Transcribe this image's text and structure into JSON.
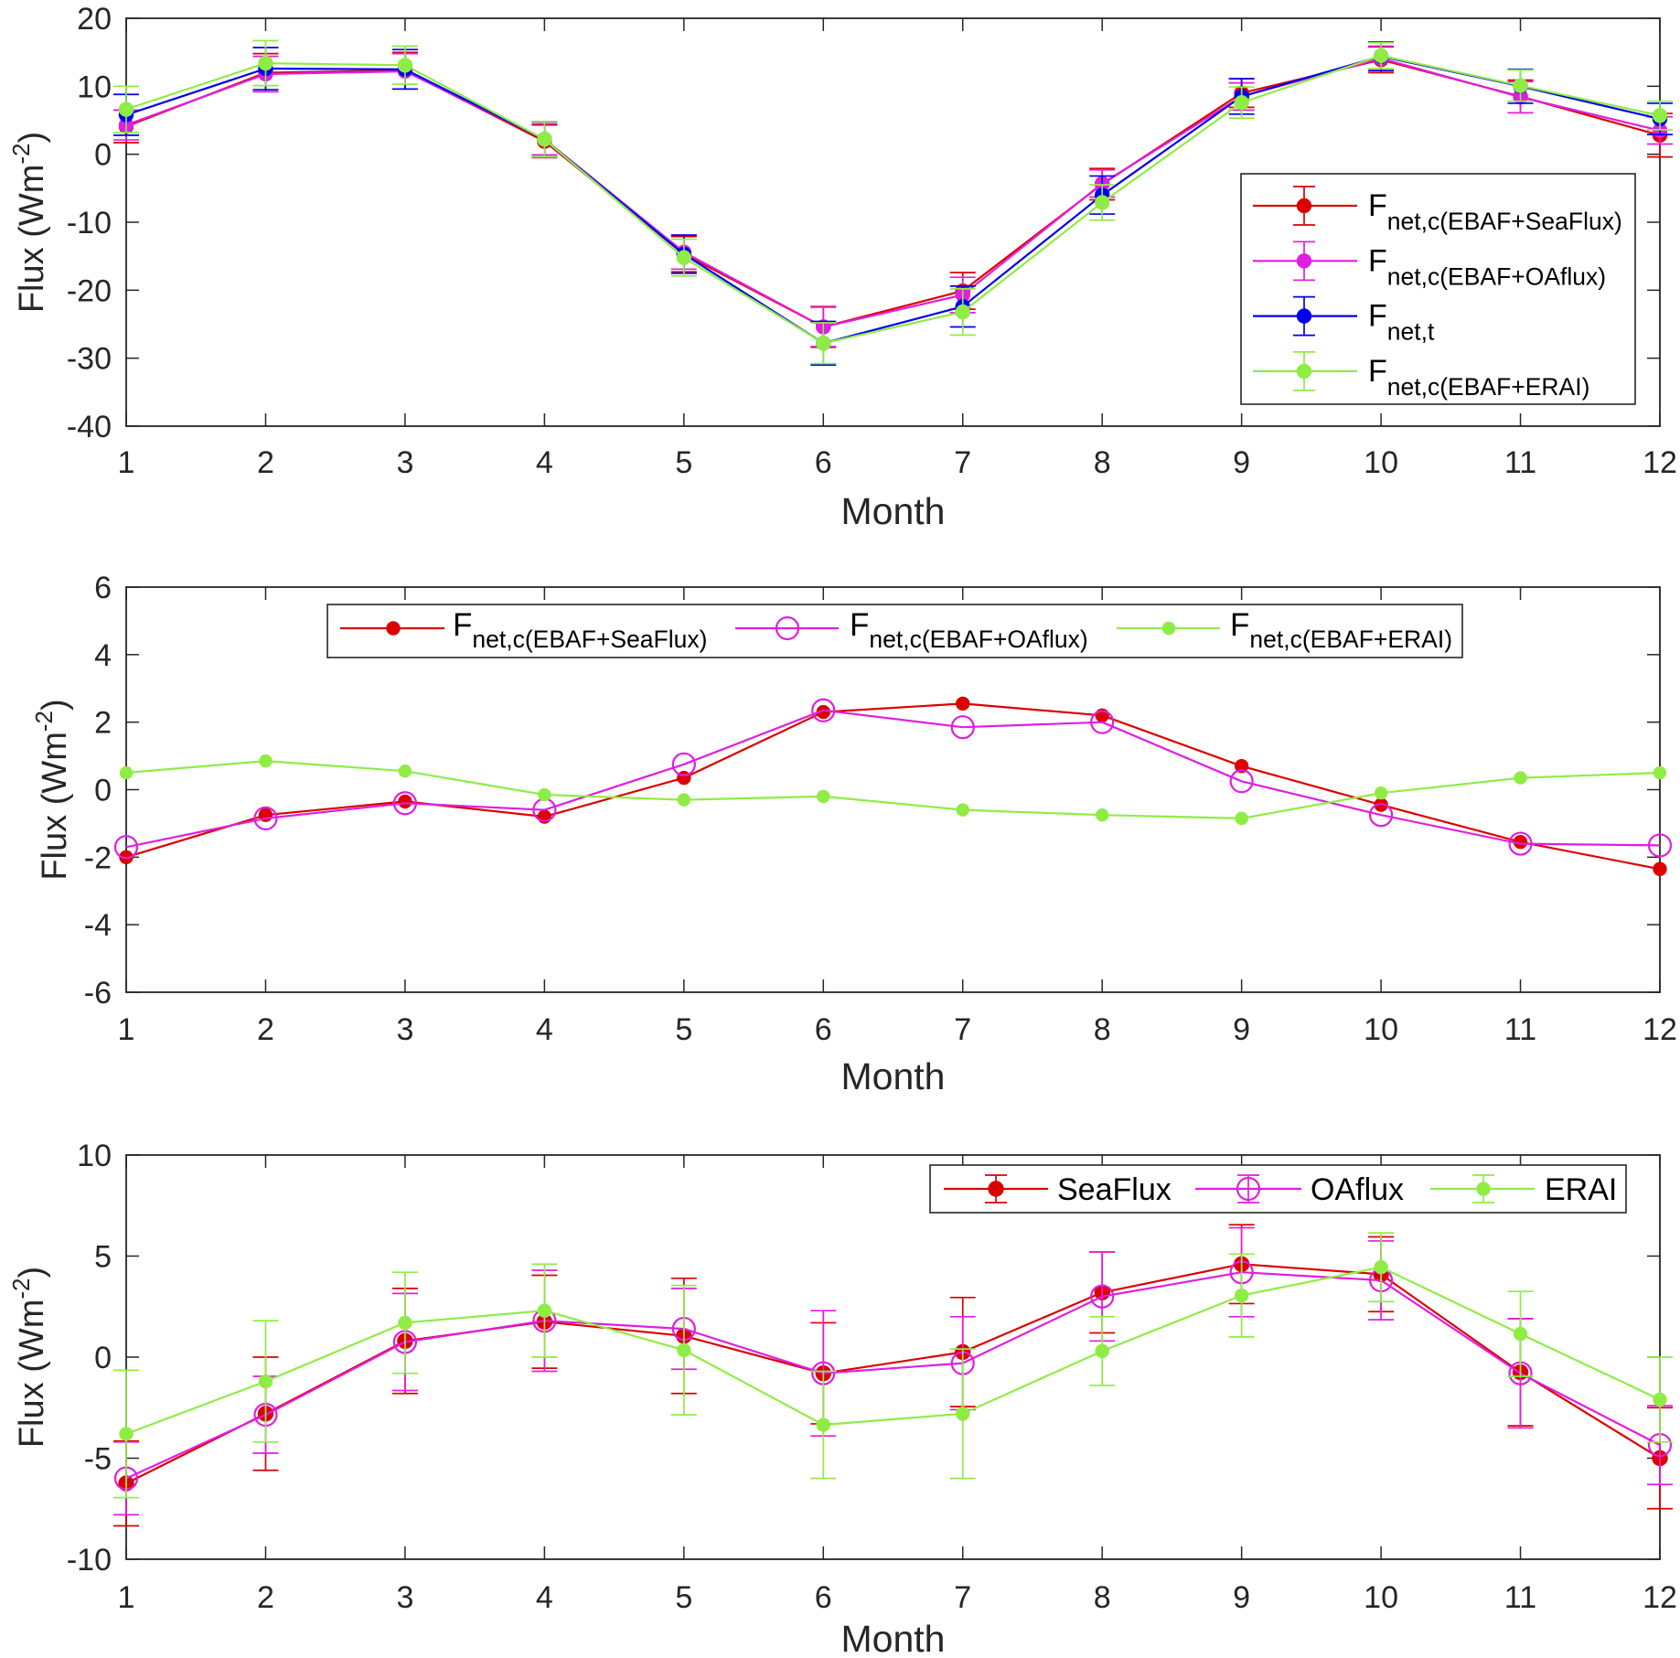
{
  "chart_data": [
    {
      "type": "line",
      "x": [
        1,
        2,
        3,
        4,
        5,
        6,
        7,
        8,
        9,
        10,
        11,
        12
      ],
      "xticks": [
        1,
        2,
        3,
        4,
        5,
        6,
        7,
        8,
        9,
        10,
        11,
        12
      ],
      "yticks": [
        -40,
        -30,
        -20,
        -10,
        0,
        10,
        20
      ],
      "xlim": [
        1,
        12
      ],
      "ylim": [
        -40,
        20
      ],
      "xlabel": "Month",
      "ylabel": {
        "main": "Flux (Wm",
        "sup": "-2",
        "end": ")"
      },
      "legend_location": "east",
      "series": [
        {
          "label": {
            "main": "F",
            "sub": "net,c(EBAF+SeaFlux)"
          },
          "color": "#dc0000",
          "marker_icon": "filled-circle-icon",
          "values": [
            4.1,
            12.0,
            12.3,
            1.9,
            -14.7,
            -25.4,
            -20.1,
            -4.4,
            9.0,
            13.9,
            8.5,
            2.8
          ],
          "errors": [
            2.4,
            2.8,
            2.7,
            2.4,
            2.6,
            3.0,
            2.7,
            2.3,
            2.1,
            1.9,
            2.4,
            3.2
          ]
        },
        {
          "label": {
            "main": "F",
            "sub": "net,c(EBAF+OAflux)"
          },
          "color": "#e01ee0",
          "marker_icon": "filled-circle-icon",
          "values": [
            4.3,
            11.8,
            12.2,
            2.2,
            -14.4,
            -25.4,
            -20.7,
            -4.3,
            8.5,
            14.1,
            8.4,
            3.5
          ],
          "errors": [
            2.2,
            2.6,
            2.6,
            2.3,
            2.5,
            2.9,
            2.6,
            2.0,
            2.0,
            1.8,
            2.3,
            2.0
          ]
        },
        {
          "label": {
            "main": "F",
            "sub": "net,t"
          },
          "color": "#0000ee",
          "marker_icon": "filled-circle-icon",
          "values": [
            5.8,
            12.6,
            12.5,
            2.2,
            -14.7,
            -27.8,
            -22.4,
            -6.0,
            8.5,
            14.4,
            10.0,
            5.2
          ],
          "errors": [
            3.0,
            3.1,
            2.9,
            2.6,
            2.8,
            3.2,
            3.0,
            2.8,
            2.6,
            2.1,
            2.5,
            2.3
          ]
        },
        {
          "label": {
            "main": "F",
            "sub": "net,c(EBAF+ERAI)"
          },
          "color": "#8fec45",
          "marker_icon": "filled-circle-icon",
          "values": [
            6.6,
            13.4,
            13.1,
            2.2,
            -15.2,
            -27.8,
            -23.2,
            -7.1,
            7.6,
            14.5,
            10.1,
            5.7
          ],
          "errors": [
            3.4,
            3.3,
            2.8,
            2.6,
            2.7,
            3.0,
            3.4,
            2.6,
            2.3,
            1.9,
            2.3,
            2.1
          ]
        }
      ]
    },
    {
      "type": "line",
      "x": [
        1,
        2,
        3,
        4,
        5,
        6,
        7,
        8,
        9,
        10,
        11,
        12
      ],
      "xticks": [
        1,
        2,
        3,
        4,
        5,
        6,
        7,
        8,
        9,
        10,
        11,
        12
      ],
      "yticks": [
        -6,
        -4,
        -2,
        0,
        2,
        4,
        6
      ],
      "xlim": [
        1,
        12
      ],
      "ylim": [
        -6,
        6
      ],
      "xlabel": "Month",
      "ylabel": {
        "main": "Flux (Wm",
        "sup": "-2",
        "end": ")"
      },
      "legend_location": "north",
      "series": [
        {
          "label": {
            "main": "F",
            "sub": "net,c(EBAF+SeaFlux)"
          },
          "color": "#dc0000",
          "marker_icon": "filled-circle-icon",
          "values": [
            -2.0,
            -0.75,
            -0.35,
            -0.8,
            0.35,
            2.3,
            2.55,
            2.2,
            0.7,
            -0.45,
            -1.55,
            -2.35
          ]
        },
        {
          "label": {
            "main": "F",
            "sub": "net,c(EBAF+OAflux)"
          },
          "color": "#e01ee0",
          "marker_icon": "open-circle-icon",
          "values": [
            -1.7,
            -0.85,
            -0.4,
            -0.6,
            0.75,
            2.35,
            1.85,
            2.0,
            0.25,
            -0.75,
            -1.6,
            -1.65
          ]
        },
        {
          "label": {
            "main": "F",
            "sub": "net,c(EBAF+ERAI)"
          },
          "color": "#8fec45",
          "marker_icon": "filled-circle-icon",
          "values": [
            0.5,
            0.85,
            0.55,
            -0.15,
            -0.3,
            -0.2,
            -0.6,
            -0.75,
            -0.85,
            -0.1,
            0.35,
            0.5
          ]
        }
      ]
    },
    {
      "type": "line",
      "x": [
        1,
        2,
        3,
        4,
        5,
        6,
        7,
        8,
        9,
        10,
        11,
        12
      ],
      "xticks": [
        1,
        2,
        3,
        4,
        5,
        6,
        7,
        8,
        9,
        10,
        11,
        12
      ],
      "yticks": [
        -10,
        -5,
        0,
        5,
        10
      ],
      "xlim": [
        1,
        12
      ],
      "ylim": [
        -10,
        10
      ],
      "xlabel": "Month",
      "ylabel": {
        "main": "Flux (Wm",
        "sup": "-2",
        "end": ")"
      },
      "legend_location": "northeast",
      "series": [
        {
          "label": {
            "main": "SeaFlux"
          },
          "color": "#dc0000",
          "marker_icon": "filled-circle-icon",
          "values": [
            -6.25,
            -2.8,
            0.8,
            1.75,
            1.05,
            -0.8,
            0.25,
            3.2,
            4.6,
            4.1,
            -0.75,
            -5.0
          ],
          "errors": [
            2.1,
            2.8,
            2.6,
            2.3,
            2.85,
            2.5,
            2.7,
            2.0,
            1.95,
            1.85,
            2.65,
            2.5
          ]
        },
        {
          "label": {
            "main": "OAflux"
          },
          "color": "#e01ee0",
          "marker_icon": "open-circle-icon",
          "values": [
            -6.0,
            -2.85,
            0.75,
            1.8,
            1.4,
            -0.8,
            -0.3,
            3.0,
            4.2,
            3.8,
            -0.8,
            -4.35
          ],
          "errors": [
            1.8,
            1.9,
            2.4,
            2.5,
            2.0,
            3.1,
            2.3,
            2.2,
            2.2,
            1.95,
            2.7,
            1.95
          ]
        },
        {
          "label": {
            "main": "ERAI"
          },
          "color": "#8fec45",
          "marker_icon": "filled-circle-icon",
          "values": [
            -3.8,
            -1.2,
            1.7,
            2.3,
            0.35,
            -3.35,
            -2.8,
            0.3,
            3.05,
            4.45,
            1.15,
            -2.1
          ],
          "errors": [
            3.15,
            3.0,
            2.5,
            2.3,
            3.2,
            2.65,
            3.2,
            1.7,
            2.05,
            1.7,
            2.1,
            2.1
          ]
        }
      ]
    }
  ]
}
